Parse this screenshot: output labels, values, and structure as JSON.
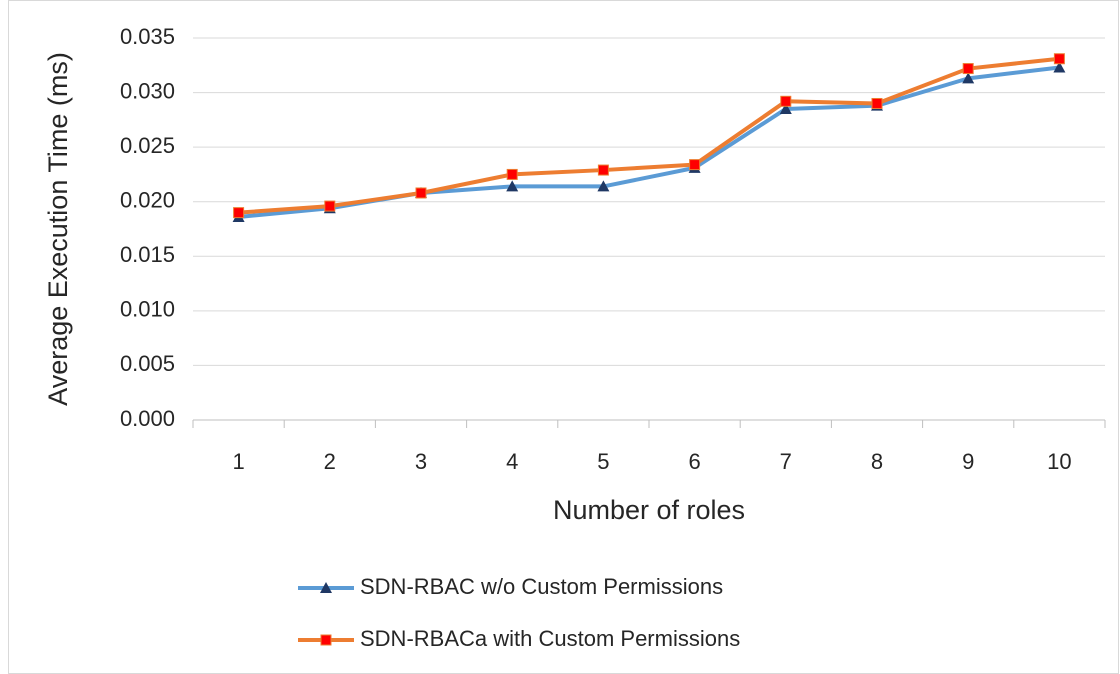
{
  "chart_data": {
    "type": "line",
    "x_label": "Number of roles",
    "y_label": "Average Execution Time (ms)",
    "categories": [
      "1",
      "2",
      "3",
      "4",
      "5",
      "6",
      "7",
      "8",
      "9",
      "10"
    ],
    "series": [
      {
        "name": "SDN-RBAC w/o Custom Permissions",
        "color": "#5b9bd5",
        "marker": "triangle",
        "marker_color": "#1f3864",
        "values": [
          0.0186,
          0.0194,
          0.0208,
          0.0214,
          0.0214,
          0.0231,
          0.0285,
          0.0288,
          0.0313,
          0.0323
        ]
      },
      {
        "name": "SDN-RBACa with Custom Permissions",
        "color": "#ed7d31",
        "marker": "square",
        "marker_color": "#ff0000",
        "values": [
          0.019,
          0.0196,
          0.0208,
          0.0225,
          0.0229,
          0.0234,
          0.0292,
          0.029,
          0.0322,
          0.0331
        ]
      }
    ],
    "ylim": [
      0,
      0.035
    ],
    "yticks": [
      {
        "value": 0,
        "label": "0.000"
      },
      {
        "value": 0.005,
        "label": "0.005"
      },
      {
        "value": 0.01,
        "label": "0.010"
      },
      {
        "value": 0.015,
        "label": "0.015"
      },
      {
        "value": 0.02,
        "label": "0.020"
      },
      {
        "value": 0.025,
        "label": "0.025"
      },
      {
        "value": 0.03,
        "label": "0.030"
      },
      {
        "value": 0.035,
        "label": "0.035"
      }
    ],
    "grid": true,
    "legend": "bottom"
  }
}
